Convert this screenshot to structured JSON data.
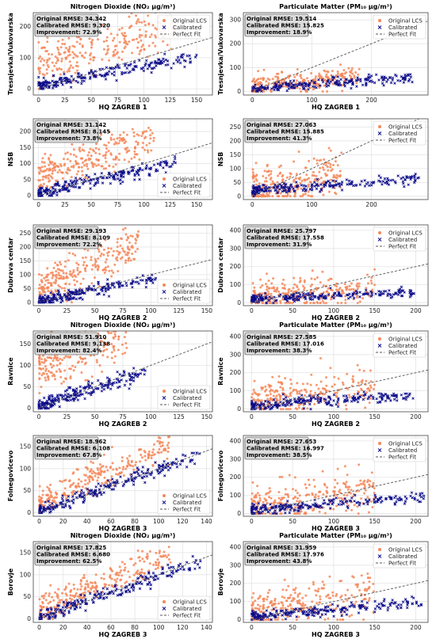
{
  "colors": {
    "original": "#F4885B",
    "calibrated": "#0B0B8A",
    "fit": "#555555",
    "grid": "#E4E4E4",
    "frame": "#444444"
  },
  "chart_data": [
    {
      "type": "scatter",
      "title": "Nitrogen Dioxide (NO₂ µg/m³)",
      "xlabel": "HQ ZAGREB 1",
      "ylabel": "Tresnjevka/Vukovarska",
      "xticks": [
        0,
        25,
        50,
        75,
        100,
        125,
        150
      ],
      "yticks": [
        0,
        100,
        200
      ],
      "xlim": [
        -5,
        165
      ],
      "ylim": [
        -20,
        245
      ],
      "stats": [
        "Original RMSE: 34.342",
        "Calibrated RMSE: 9.320",
        "Improvement: 72.9%"
      ],
      "legend": [
        "Original LCS",
        "Calibrated",
        "Perfect Fit"
      ],
      "legend_loc": "top-right",
      "original": {
        "slope": 1.05,
        "intercept": 75,
        "spread": 35,
        "xmax": 130
      },
      "calibrated": {
        "slope": 0.62,
        "intercept": 10,
        "spread": 10,
        "xmax": 150
      }
    },
    {
      "type": "scatter",
      "title": "Particulate Matter (PM₁₀ µg/m³)",
      "xlabel": "HQ ZAGREB 1",
      "ylabel": "Tresnjevka/Vukovarska",
      "xticks": [
        0,
        100,
        200
      ],
      "yticks": [
        0,
        100,
        200,
        300
      ],
      "xlim": [
        -15,
        295
      ],
      "ylim": [
        -15,
        330
      ],
      "stats": [
        "Original RMSE: 19.514",
        "Calibrated RMSE: 15.825",
        "Improvement: 18.9%"
      ],
      "legend": [
        "Original LCS",
        "Calibrated",
        "Perfect Fit"
      ],
      "legend_loc": "top-right",
      "original": {
        "slope": 0.3,
        "intercept": 15,
        "spread": 22,
        "xmax": 180
      },
      "calibrated": {
        "slope": 0.18,
        "intercept": 12,
        "spread": 10,
        "xmax": 270
      }
    },
    {
      "type": "scatter",
      "title": "",
      "xlabel": "",
      "ylabel": "NSB",
      "xticks": [
        0,
        25,
        50,
        75,
        100,
        125,
        150
      ],
      "yticks": [
        0,
        50,
        100,
        150,
        200
      ],
      "xlim": [
        -5,
        165
      ],
      "ylim": [
        -12,
        240
      ],
      "stats": [
        "Original RMSE: 31.142",
        "Calibrated RMSE: 8.145",
        "Improvement: 73.8%"
      ],
      "legend": [
        "Original LCS",
        "Calibrated",
        "Perfect Fit"
      ],
      "legend_loc": "lower-right",
      "original": {
        "slope": 1.05,
        "intercept": 60,
        "spread": 30,
        "xmax": 110
      },
      "calibrated": {
        "slope": 0.72,
        "intercept": 8,
        "spread": 10,
        "xmax": 130
      }
    },
    {
      "type": "scatter",
      "title": "",
      "xlabel": "",
      "ylabel": "NSB",
      "xticks": [
        0,
        100,
        200
      ],
      "yticks": [
        0,
        50,
        100,
        150,
        200,
        250
      ],
      "xlim": [
        -15,
        295
      ],
      "ylim": [
        -12,
        280
      ],
      "stats": [
        "Original RMSE: 27.063",
        "Calibrated RMSE: 15.885",
        "Improvement: 41.3%"
      ],
      "legend": [
        "Original LCS",
        "Calibrated",
        "Perfect Fit"
      ],
      "legend_loc": "top-right",
      "original": {
        "slope": 0.35,
        "intercept": 25,
        "spread": 40,
        "xmax": 150
      },
      "calibrated": {
        "slope": 0.15,
        "intercept": 20,
        "spread": 10,
        "xmax": 280
      }
    },
    {
      "type": "scatter",
      "title": "",
      "xlabel": "HQ ZAGREB 2",
      "ylabel": "Dubrava centar",
      "xticks": [
        0,
        25,
        50,
        75,
        100,
        125,
        150
      ],
      "yticks": [
        0,
        50,
        100,
        150,
        200,
        250
      ],
      "xlim": [
        -5,
        155
      ],
      "ylim": [
        -12,
        280
      ],
      "stats": [
        "Original RMSE: 29.193",
        "Calibrated RMSE: 8.109",
        "Improvement: 72.2%"
      ],
      "legend": [
        "Original LCS",
        "Calibrated",
        "Perfect Fit"
      ],
      "legend_loc": "lower-right",
      "original": {
        "slope": 1.8,
        "intercept": 45,
        "spread": 40,
        "xmax": 90
      },
      "calibrated": {
        "slope": 0.8,
        "intercept": 5,
        "spread": 10,
        "xmax": 105
      }
    },
    {
      "type": "scatter",
      "title": "",
      "xlabel": "HQ ZAGREB 2",
      "ylabel": "Dubrava centar",
      "xticks": [
        0,
        50,
        100,
        150,
        200
      ],
      "yticks": [
        0,
        100,
        200,
        300,
        400
      ],
      "xlim": [
        -10,
        215
      ],
      "ylim": [
        -15,
        430
      ],
      "stats": [
        "Original RMSE: 25.797",
        "Calibrated RMSE: 17.558",
        "Improvement: 31.9%"
      ],
      "legend": [
        "Original LCS",
        "Calibrated",
        "Perfect Fit"
      ],
      "legend_loc": "top-right",
      "original": {
        "slope": 0.4,
        "intercept": 30,
        "spread": 45,
        "xmax": 150
      },
      "calibrated": {
        "slope": 0.2,
        "intercept": 20,
        "spread": 12,
        "xmax": 200
      }
    },
    {
      "type": "scatter",
      "title": "Nitrogen Dioxide (NO₂ µg/m³)",
      "xlabel": "HQ ZAGREB 2",
      "ylabel": "Ravnice",
      "xticks": [
        0,
        25,
        50,
        75,
        100,
        125,
        150
      ],
      "yticks": [
        0,
        50,
        100,
        150
      ],
      "xlim": [
        -5,
        155
      ],
      "ylim": [
        -8,
        180
      ],
      "stats": [
        "Original RMSE: 51.910",
        "Calibrated RMSE: 9.138",
        "Improvement: 82.4%"
      ],
      "legend": [
        "Original LCS",
        "Calibrated",
        "Perfect Fit"
      ],
      "legend_loc": "lower-right",
      "original": {
        "slope": 0.9,
        "intercept": 100,
        "spread": 30,
        "xmax": 80
      },
      "calibrated": {
        "slope": 0.85,
        "intercept": 5,
        "spread": 9,
        "xmax": 95
      }
    },
    {
      "type": "scatter",
      "title": "Particulate Matter (PM₁₀ µg/m³)",
      "xlabel": "HQ ZAGREB 2",
      "ylabel": "Ravnice",
      "xticks": [
        0,
        50,
        100,
        150,
        200
      ],
      "yticks": [
        0,
        100,
        200,
        300,
        400
      ],
      "xlim": [
        -10,
        215
      ],
      "ylim": [
        -15,
        430
      ],
      "stats": [
        "Original RMSE: 27.585",
        "Calibrated RMSE: 17.016",
        "Improvement: 38.3%"
      ],
      "legend": [
        "Original LCS",
        "Calibrated",
        "Perfect Fit"
      ],
      "legend_loc": "top-right",
      "original": {
        "slope": 0.6,
        "intercept": 40,
        "spread": 50,
        "xmax": 150
      },
      "calibrated": {
        "slope": 0.3,
        "intercept": 20,
        "spread": 15,
        "xmax": 200
      }
    },
    {
      "type": "scatter",
      "title": "",
      "xlabel": "HQ ZAGREB 3",
      "ylabel": "Folnegovicevo",
      "xticks": [
        0,
        20,
        40,
        60,
        80,
        100,
        120,
        140
      ],
      "yticks": [
        0,
        50,
        100,
        150
      ],
      "xlim": [
        -5,
        145
      ],
      "ylim": [
        -8,
        175
      ],
      "stats": [
        "Original RMSE: 18.962",
        "Calibrated RMSE: 6.108",
        "Improvement: 67.8%"
      ],
      "legend": [
        "Original LCS",
        "Calibrated",
        "Perfect Fit"
      ],
      "legend_loc": "lower-right",
      "original": {
        "slope": 1.15,
        "intercept": 25,
        "spread": 18,
        "xmax": 110
      },
      "calibrated": {
        "slope": 0.95,
        "intercept": 3,
        "spread": 8,
        "xmax": 135
      }
    },
    {
      "type": "scatter",
      "title": "",
      "xlabel": "HQ ZAGREB 3",
      "ylabel": "Folnegovicevo",
      "xticks": [
        0,
        50,
        100,
        150,
        200
      ],
      "yticks": [
        0,
        100,
        200,
        300,
        400
      ],
      "xlim": [
        -10,
        215
      ],
      "ylim": [
        -15,
        430
      ],
      "stats": [
        "Original RMSE: 27.653",
        "Calibrated RMSE: 16.997",
        "Improvement: 38.5%"
      ],
      "legend": [
        "Original LCS",
        "Calibrated",
        "Perfect Fit"
      ],
      "legend_loc": "top-right",
      "original": {
        "slope": 0.6,
        "intercept": 40,
        "spread": 55,
        "xmax": 150
      },
      "calibrated": {
        "slope": 0.35,
        "intercept": 20,
        "spread": 15,
        "xmax": 210
      }
    },
    {
      "type": "scatter",
      "title": "Nitrogen Dioxide (NO₂ µg/m³)",
      "xlabel": "HQ ZAGREB 3",
      "ylabel": "Borovje",
      "xticks": [
        0,
        20,
        40,
        60,
        80,
        100,
        120,
        140
      ],
      "yticks": [
        0,
        50,
        100,
        150
      ],
      "xlim": [
        -5,
        145
      ],
      "ylim": [
        -8,
        175
      ],
      "stats": [
        "Original RMSE: 17.825",
        "Calibrated RMSE: 6.680",
        "Improvement: 62.5%"
      ],
      "legend": [
        "Original LCS",
        "Calibrated",
        "Perfect Fit"
      ],
      "legend_loc": "lower-right",
      "original": {
        "slope": 1.15,
        "intercept": 20,
        "spread": 16,
        "xmax": 110
      },
      "calibrated": {
        "slope": 0.95,
        "intercept": 3,
        "spread": 8,
        "xmax": 135
      }
    },
    {
      "type": "scatter",
      "title": "Particulate Matter (PM₁₀ µg/m³)",
      "xlabel": "HQ ZAGREB 3",
      "ylabel": "Borovje",
      "xticks": [
        0,
        50,
        100,
        150,
        200
      ],
      "yticks": [
        0,
        100,
        200,
        300,
        400
      ],
      "xlim": [
        -10,
        215
      ],
      "ylim": [
        -15,
        430
      ],
      "stats": [
        "Original RMSE: 31.959",
        "Calibrated RMSE: 17.976",
        "Improvement: 43.8%"
      ],
      "legend": [
        "Original LCS",
        "Calibrated",
        "Perfect Fit"
      ],
      "legend_loc": "top-right",
      "original": {
        "slope": 0.65,
        "intercept": 40,
        "spread": 55,
        "xmax": 150
      },
      "calibrated": {
        "slope": 0.35,
        "intercept": 20,
        "spread": 15,
        "xmax": 210
      }
    }
  ]
}
